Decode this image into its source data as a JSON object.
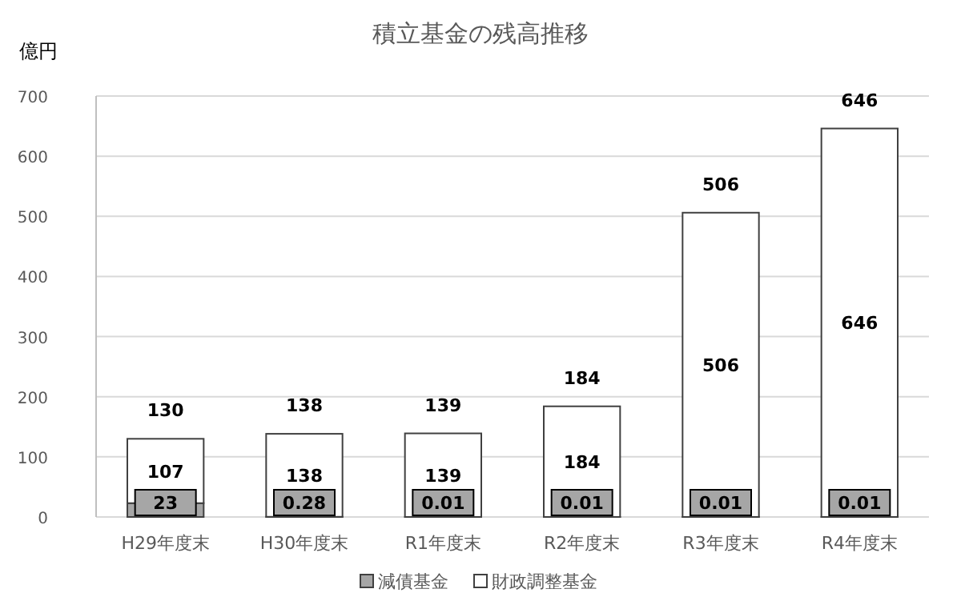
{
  "chart_data": {
    "type": "bar",
    "title": "積立基金の残高推移",
    "ylabel": "億円",
    "categories": [
      "H29年度末",
      "H30年度末",
      "R1年度末",
      "R2年度末",
      "R3年度末",
      "R4年度末"
    ],
    "stacked": true,
    "series": [
      {
        "name": "減債基金",
        "color": "#a6a6a6",
        "values": [
          23,
          0.28,
          0.01,
          0.01,
          0.01,
          0.01
        ]
      },
      {
        "name": "財政調整基金",
        "color": "#ffffff",
        "values": [
          107,
          138,
          139,
          184,
          506,
          646
        ]
      }
    ],
    "totals": [
      "130",
      "138",
      "139",
      "184",
      "506",
      "646"
    ],
    "data_labels": true,
    "ylim": [
      0,
      700
    ],
    "yticks": [
      0,
      100,
      200,
      300,
      400,
      500,
      600,
      700
    ],
    "grid": "y",
    "legend": "bottom"
  }
}
